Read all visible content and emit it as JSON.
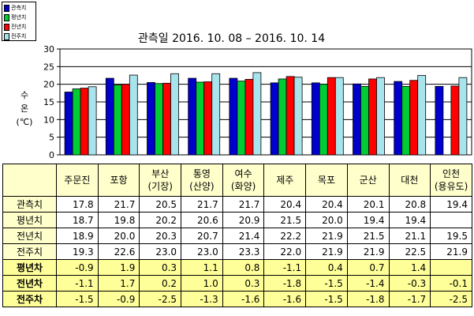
{
  "chart_data": {
    "type": "bar",
    "title": "관측일 2016. 10. 08 – 2016. 10. 14",
    "ylabel": [
      "수",
      "온",
      "(℃)"
    ],
    "ylim": [
      0,
      30
    ],
    "yticks": [
      "0",
      "5",
      "10",
      "15",
      "20",
      "25",
      "30"
    ],
    "categories": [
      "주문진",
      "포항",
      "부산(기장)",
      "통영(산양)",
      "여수(화양)",
      "제주",
      "목포",
      "군산",
      "대천",
      "인천(용유도)"
    ],
    "legend": "top-left",
    "grid": true,
    "series": [
      {
        "name": "관측치",
        "color": "#0000cc",
        "values": [
          17.8,
          21.7,
          20.5,
          21.7,
          21.7,
          20.4,
          20.4,
          20.1,
          20.8,
          19.4
        ]
      },
      {
        "name": "평년치",
        "color": "#00cc33",
        "values": [
          18.7,
          19.8,
          20.2,
          20.6,
          20.9,
          21.5,
          20.0,
          19.4,
          19.4,
          null
        ]
      },
      {
        "name": "전년치",
        "color": "#ff0000",
        "values": [
          18.9,
          20.0,
          20.3,
          20.7,
          21.4,
          22.2,
          21.9,
          21.5,
          21.1,
          19.5
        ]
      },
      {
        "name": "전주치",
        "color": "#a8e4ec",
        "values": [
          19.3,
          22.6,
          23.0,
          23.0,
          23.3,
          22.0,
          21.9,
          21.9,
          22.5,
          21.9
        ]
      }
    ]
  },
  "table": {
    "headers": [
      [
        "주문진"
      ],
      [
        "포항"
      ],
      [
        "부산",
        "(기장)"
      ],
      [
        "통영",
        "(산양)"
      ],
      [
        "여수",
        "(화양)"
      ],
      [
        "제주"
      ],
      [
        "목포"
      ],
      [
        "군산"
      ],
      [
        "대천"
      ],
      [
        "인천",
        "(용유도)"
      ]
    ],
    "rows": [
      {
        "label": "관측치",
        "type": "value",
        "cells": [
          "17.8",
          "21.7",
          "20.5",
          "21.7",
          "21.7",
          "20.4",
          "20.4",
          "20.1",
          "20.8",
          "19.4"
        ]
      },
      {
        "label": "평년치",
        "type": "value",
        "cells": [
          "18.7",
          "19.8",
          "20.2",
          "20.6",
          "20.9",
          "21.5",
          "20.0",
          "19.4",
          "19.4",
          ""
        ]
      },
      {
        "label": "전년치",
        "type": "value",
        "cells": [
          "18.9",
          "20.0",
          "20.3",
          "20.7",
          "21.4",
          "22.2",
          "21.9",
          "21.5",
          "21.1",
          "19.5"
        ]
      },
      {
        "label": "전주치",
        "type": "value",
        "cells": [
          "19.3",
          "22.6",
          "23.0",
          "23.0",
          "23.3",
          "22.0",
          "21.9",
          "21.9",
          "22.5",
          "21.9"
        ]
      },
      {
        "label": "평년차",
        "type": "diff",
        "cells": [
          "-0.9",
          "1.9",
          "0.3",
          "1.1",
          "0.8",
          "-1.1",
          "0.4",
          "0.7",
          "1.4",
          ""
        ]
      },
      {
        "label": "전년차",
        "type": "diff",
        "cells": [
          "-1.1",
          "1.7",
          "0.2",
          "1.0",
          "0.3",
          "-1.8",
          "-1.5",
          "-1.4",
          "-0.3",
          "-0.1"
        ]
      },
      {
        "label": "전주차",
        "type": "diff",
        "cells": [
          "-1.5",
          "-0.9",
          "-2.5",
          "-1.3",
          "-1.6",
          "-1.6",
          "-1.5",
          "-1.8",
          "-1.7",
          "-2.5"
        ]
      }
    ]
  }
}
